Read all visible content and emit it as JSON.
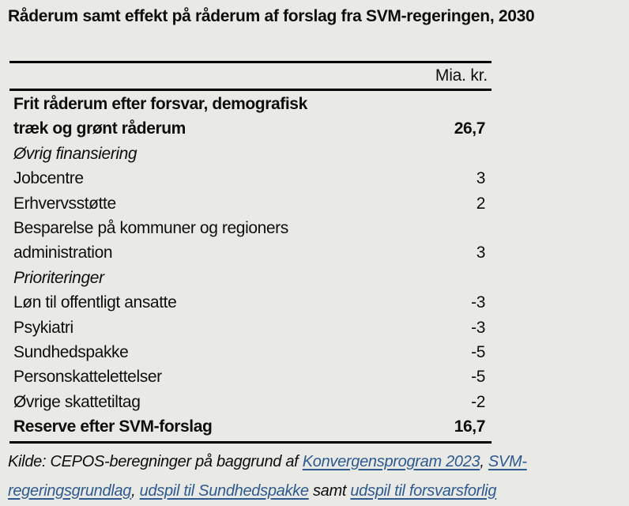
{
  "title": "Råderum samt effekt på råderum af forslag fra SVM-regeringen, 2030",
  "table": {
    "unit_header": "Mia. kr.",
    "rows": [
      {
        "label_lines": [
          "Frit råderum efter forsvar, demografisk",
          "træk og grønt råderum"
        ],
        "value": "26,7",
        "style": "bold"
      },
      {
        "label_lines": [
          "Øvrig finansiering"
        ],
        "value": "",
        "style": "italic"
      },
      {
        "label_lines": [
          "Jobcentre"
        ],
        "value": "3",
        "style": "normal"
      },
      {
        "label_lines": [
          "Erhvervsstøtte"
        ],
        "value": "2",
        "style": "normal"
      },
      {
        "label_lines": [
          "Besparelse på kommuner og regioners",
          "administration"
        ],
        "value": "3",
        "style": "normal"
      },
      {
        "label_lines": [
          "Prioriteringer"
        ],
        "value": "",
        "style": "italic"
      },
      {
        "label_lines": [
          "Løn til offentligt ansatte"
        ],
        "value": "-3",
        "style": "normal"
      },
      {
        "label_lines": [
          "Psykiatri"
        ],
        "value": "-3",
        "style": "normal"
      },
      {
        "label_lines": [
          "Sundhedspakke"
        ],
        "value": "-5",
        "style": "normal"
      },
      {
        "label_lines": [
          "Personskattelettelser"
        ],
        "value": "-5",
        "style": "normal"
      },
      {
        "label_lines": [
          "Øvrige skattetiltag"
        ],
        "value": "-2",
        "style": "normal"
      },
      {
        "label_lines": [
          "Reserve efter SVM-forslag"
        ],
        "value": "16,7",
        "style": "bold"
      }
    ]
  },
  "source": {
    "segments": [
      {
        "text": "Kilde: CEPOS-beregninger på baggrund af ",
        "link": false
      },
      {
        "text": "Konvergensprogram 2023",
        "link": true
      },
      {
        "text": ", ",
        "link": false
      },
      {
        "text": "SVM-regeringsgrundlag",
        "link": true
      },
      {
        "text": ", ",
        "link": false
      },
      {
        "text": "udspil til Sundhedspakke",
        "link": true
      },
      {
        "text": " samt ",
        "link": false
      },
      {
        "text": "udspil til forsvarsforlig",
        "link": true
      }
    ]
  },
  "colors": {
    "background": "#e9e9e6",
    "text": "#0e0e0e",
    "link": "#2e5a8f",
    "rule": "#000000"
  }
}
